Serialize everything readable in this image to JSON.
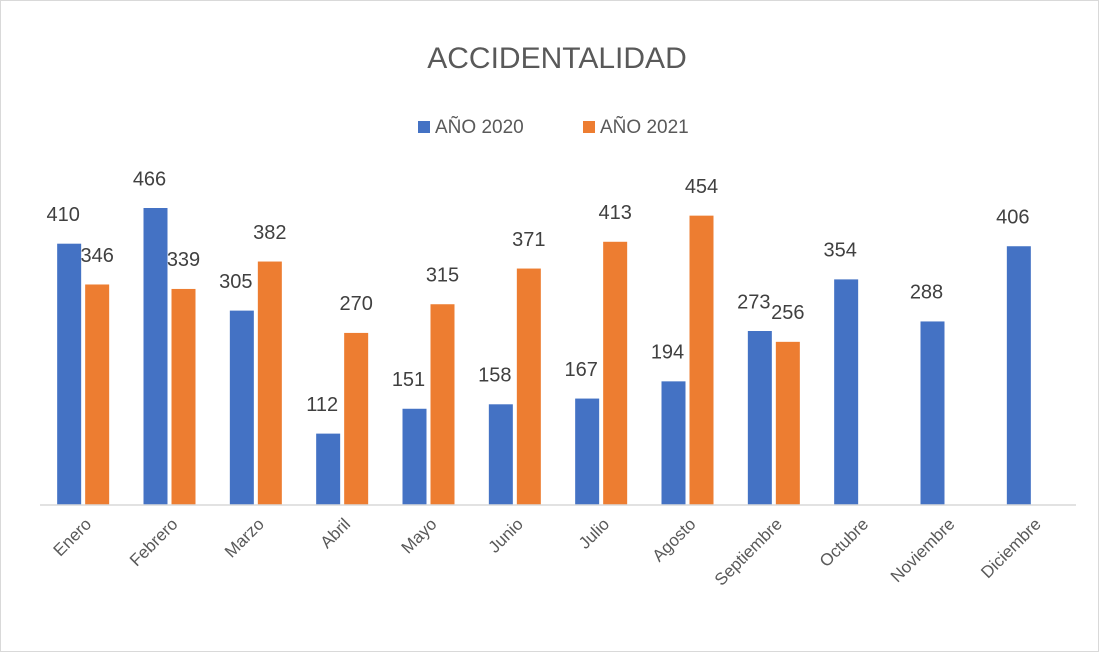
{
  "chart_data": {
    "type": "bar",
    "title": "ACCIDENTALIDAD",
    "categories": [
      "Enero",
      "Febrero",
      "Marzo",
      "Abril",
      "Mayo",
      "Junio",
      "Julio",
      "Agosto",
      "Septiembre",
      "Octubre",
      "Noviembre",
      "Diciembre"
    ],
    "series": [
      {
        "name": "AÑO 2020",
        "color": "#4472c4",
        "values": [
          410,
          466,
          305,
          112,
          151,
          158,
          167,
          194,
          273,
          354,
          288,
          406
        ]
      },
      {
        "name": "AÑO 2021",
        "color": "#ed7d31",
        "values": [
          346,
          339,
          382,
          270,
          315,
          371,
          413,
          454,
          256,
          null,
          null,
          null
        ]
      }
    ],
    "legend": "top"
  }
}
